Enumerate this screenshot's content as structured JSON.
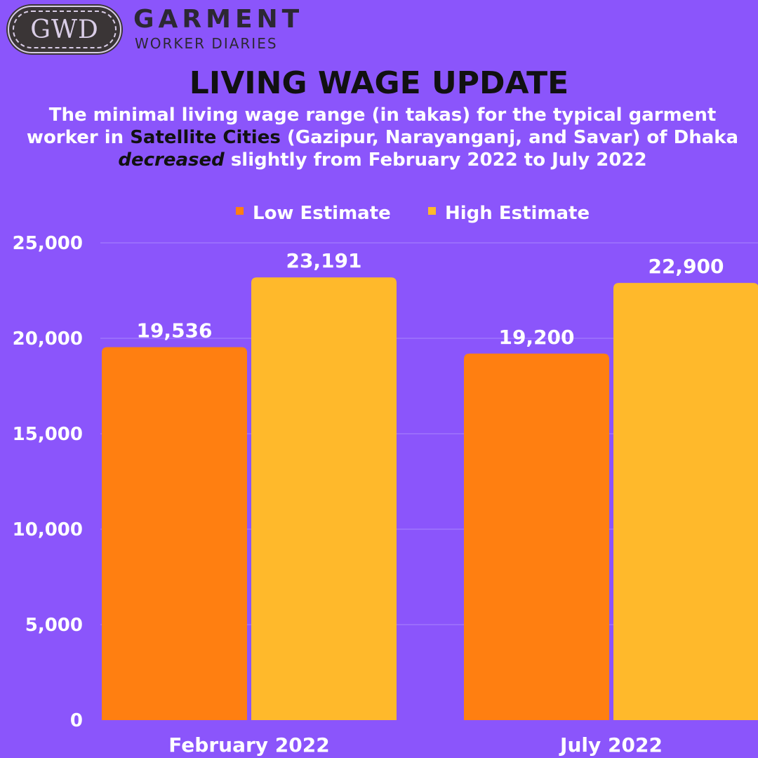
{
  "brand": {
    "logo_text": "GWD",
    "name": "GARMENT",
    "tagline": "WORKER DIARIES"
  },
  "header": {
    "title": "LIVING WAGE UPDATE",
    "subtitle_parts": {
      "p1": "The minimal living wage range (in takas) for the typical garment worker in ",
      "highlight": "Satellite Cities",
      "p2": " (Gazipur, Narayanganj, and Savar) of Dhaka ",
      "emphasis": "decreased",
      "p3": " slightly from February 2022 to July 2022"
    }
  },
  "colors": {
    "background": "#8B55FB",
    "low": "#FF7F11",
    "high": "#FFB92B",
    "grid": "#A985FC"
  },
  "chart_data": {
    "type": "bar",
    "categories": [
      "February 2022",
      "July 2022"
    ],
    "series": [
      {
        "name": "Low Estimate",
        "values": [
          19536,
          19200
        ],
        "labels": [
          "19,536",
          "19,200"
        ]
      },
      {
        "name": "High Estimate",
        "values": [
          23191,
          22900
        ],
        "labels": [
          "23,191",
          "22,900"
        ]
      }
    ],
    "ylim": [
      0,
      25000
    ],
    "yticks": [
      0,
      5000,
      10000,
      15000,
      20000,
      25000
    ],
    "ytick_labels": [
      "0",
      "5,000",
      "10,000",
      "15,000",
      "20,000",
      "25,000"
    ],
    "grid": true,
    "legend_position": "top-center"
  }
}
